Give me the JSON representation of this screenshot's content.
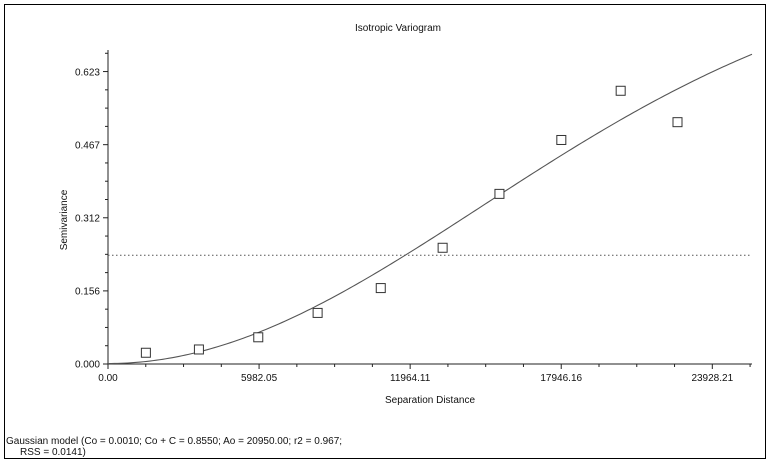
{
  "chart_data": {
    "type": "scatter",
    "title": "Isotropic Variogram",
    "xlabel": "Separation Distance",
    "ylabel": "Semivariance",
    "xlim": [
      0,
      25500
    ],
    "ylim": [
      0,
      0.67
    ],
    "x_ticks": [
      "0.00",
      "5982.05",
      "11964.11",
      "17946.16",
      "23928.21"
    ],
    "x_tick_values": [
      0,
      5982.05,
      11964.11,
      17946.16,
      23928.21
    ],
    "y_ticks": [
      "0.000",
      "0.156",
      "0.312",
      "0.467",
      "0.623"
    ],
    "y_tick_values": [
      0,
      0.156,
      0.312,
      0.467,
      0.623
    ],
    "series": [
      {
        "kind": "points",
        "marker": "open-square",
        "x": [
          1500,
          3600,
          5950,
          8300,
          10800,
          13250,
          15500,
          17950,
          20300,
          22550
        ],
        "y": [
          0.024,
          0.031,
          0.057,
          0.109,
          0.162,
          0.248,
          0.363,
          0.478,
          0.583,
          0.516
        ]
      },
      {
        "kind": "model-curve",
        "model": "gaussian",
        "nugget": 0.001,
        "sill": 0.855,
        "range": 20950
      },
      {
        "kind": "reference-line",
        "style": "dotted",
        "y": 0.232
      }
    ],
    "grid": false,
    "legend": "none"
  },
  "footnote": {
    "line1": "Gaussian model (Co = 0.0010; Co + C = 0.8550; Ao = 20950.00; r2 = 0.967;",
    "line2": "RSS = 0.0141)"
  },
  "colors": {
    "axis": "#222222",
    "curve": "#555555",
    "marker": "#333333",
    "reference": "#555555"
  }
}
